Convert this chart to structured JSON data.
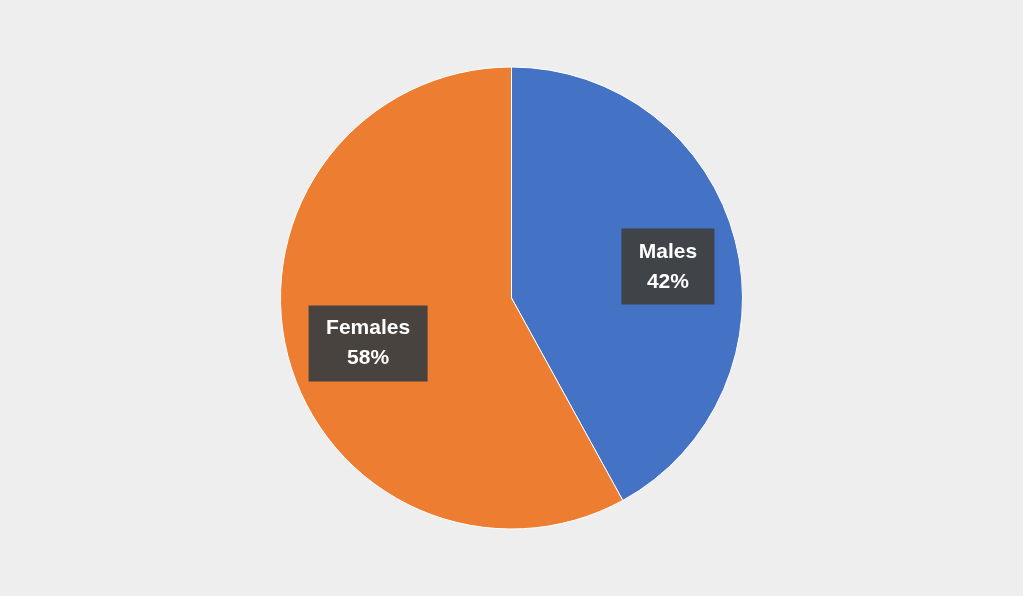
{
  "chart_data": {
    "type": "pie",
    "categories": [
      "Males",
      "Females"
    ],
    "values": [
      42,
      58
    ],
    "colors": [
      "#4472c4",
      "#ed7d31"
    ],
    "value_labels": [
      "42%",
      "58%"
    ]
  }
}
